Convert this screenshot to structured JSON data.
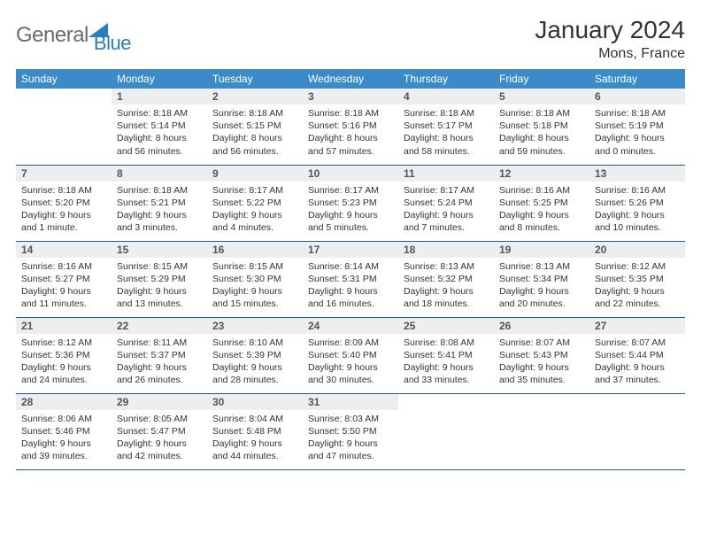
{
  "brand": {
    "name_a": "General",
    "name_b": "Blue"
  },
  "title": "January 2024",
  "location": "Mons, France",
  "theme": {
    "header_bg": "#3b8bc9",
    "header_fg": "#ffffff",
    "daynum_bg": "#eceeef",
    "divider": "#245a8a",
    "text": "#333333",
    "logo_gray": "#6b6b6b",
    "logo_blue": "#2b7bbf"
  },
  "weekdays": [
    "Sunday",
    "Monday",
    "Tuesday",
    "Wednesday",
    "Thursday",
    "Friday",
    "Saturday"
  ],
  "layout": {
    "first_weekday_index": 1,
    "days_in_month": 31
  },
  "days": {
    "1": {
      "sunrise": "8:18 AM",
      "sunset": "5:14 PM",
      "daylight": "8 hours and 56 minutes."
    },
    "2": {
      "sunrise": "8:18 AM",
      "sunset": "5:15 PM",
      "daylight": "8 hours and 56 minutes."
    },
    "3": {
      "sunrise": "8:18 AM",
      "sunset": "5:16 PM",
      "daylight": "8 hours and 57 minutes."
    },
    "4": {
      "sunrise": "8:18 AM",
      "sunset": "5:17 PM",
      "daylight": "8 hours and 58 minutes."
    },
    "5": {
      "sunrise": "8:18 AM",
      "sunset": "5:18 PM",
      "daylight": "8 hours and 59 minutes."
    },
    "6": {
      "sunrise": "8:18 AM",
      "sunset": "5:19 PM",
      "daylight": "9 hours and 0 minutes."
    },
    "7": {
      "sunrise": "8:18 AM",
      "sunset": "5:20 PM",
      "daylight": "9 hours and 1 minute."
    },
    "8": {
      "sunrise": "8:18 AM",
      "sunset": "5:21 PM",
      "daylight": "9 hours and 3 minutes."
    },
    "9": {
      "sunrise": "8:17 AM",
      "sunset": "5:22 PM",
      "daylight": "9 hours and 4 minutes."
    },
    "10": {
      "sunrise": "8:17 AM",
      "sunset": "5:23 PM",
      "daylight": "9 hours and 5 minutes."
    },
    "11": {
      "sunrise": "8:17 AM",
      "sunset": "5:24 PM",
      "daylight": "9 hours and 7 minutes."
    },
    "12": {
      "sunrise": "8:16 AM",
      "sunset": "5:25 PM",
      "daylight": "9 hours and 8 minutes."
    },
    "13": {
      "sunrise": "8:16 AM",
      "sunset": "5:26 PM",
      "daylight": "9 hours and 10 minutes."
    },
    "14": {
      "sunrise": "8:16 AM",
      "sunset": "5:27 PM",
      "daylight": "9 hours and 11 minutes."
    },
    "15": {
      "sunrise": "8:15 AM",
      "sunset": "5:29 PM",
      "daylight": "9 hours and 13 minutes."
    },
    "16": {
      "sunrise": "8:15 AM",
      "sunset": "5:30 PM",
      "daylight": "9 hours and 15 minutes."
    },
    "17": {
      "sunrise": "8:14 AM",
      "sunset": "5:31 PM",
      "daylight": "9 hours and 16 minutes."
    },
    "18": {
      "sunrise": "8:13 AM",
      "sunset": "5:32 PM",
      "daylight": "9 hours and 18 minutes."
    },
    "19": {
      "sunrise": "8:13 AM",
      "sunset": "5:34 PM",
      "daylight": "9 hours and 20 minutes."
    },
    "20": {
      "sunrise": "8:12 AM",
      "sunset": "5:35 PM",
      "daylight": "9 hours and 22 minutes."
    },
    "21": {
      "sunrise": "8:12 AM",
      "sunset": "5:36 PM",
      "daylight": "9 hours and 24 minutes."
    },
    "22": {
      "sunrise": "8:11 AM",
      "sunset": "5:37 PM",
      "daylight": "9 hours and 26 minutes."
    },
    "23": {
      "sunrise": "8:10 AM",
      "sunset": "5:39 PM",
      "daylight": "9 hours and 28 minutes."
    },
    "24": {
      "sunrise": "8:09 AM",
      "sunset": "5:40 PM",
      "daylight": "9 hours and 30 minutes."
    },
    "25": {
      "sunrise": "8:08 AM",
      "sunset": "5:41 PM",
      "daylight": "9 hours and 33 minutes."
    },
    "26": {
      "sunrise": "8:07 AM",
      "sunset": "5:43 PM",
      "daylight": "9 hours and 35 minutes."
    },
    "27": {
      "sunrise": "8:07 AM",
      "sunset": "5:44 PM",
      "daylight": "9 hours and 37 minutes."
    },
    "28": {
      "sunrise": "8:06 AM",
      "sunset": "5:46 PM",
      "daylight": "9 hours and 39 minutes."
    },
    "29": {
      "sunrise": "8:05 AM",
      "sunset": "5:47 PM",
      "daylight": "9 hours and 42 minutes."
    },
    "30": {
      "sunrise": "8:04 AM",
      "sunset": "5:48 PM",
      "daylight": "9 hours and 44 minutes."
    },
    "31": {
      "sunrise": "8:03 AM",
      "sunset": "5:50 PM",
      "daylight": "9 hours and 47 minutes."
    }
  },
  "labels": {
    "sunrise": "Sunrise:",
    "sunset": "Sunset:",
    "daylight": "Daylight:"
  }
}
